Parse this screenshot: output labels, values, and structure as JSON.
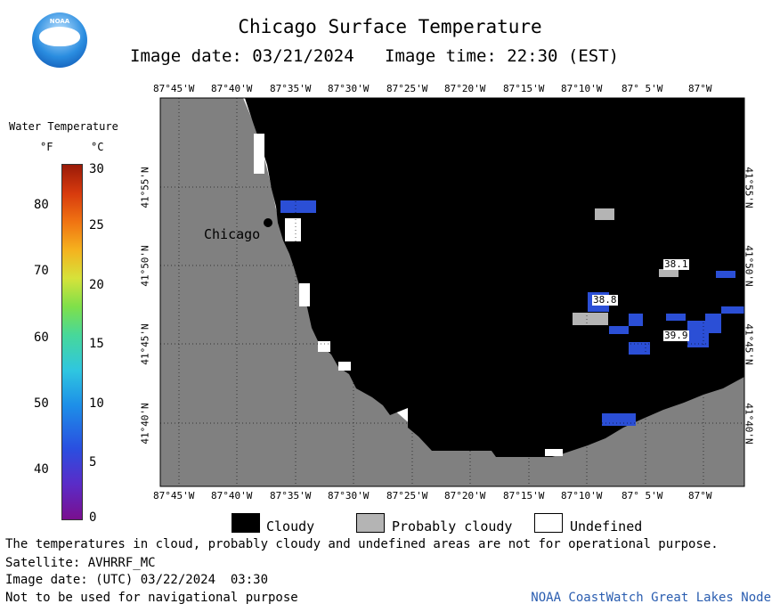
{
  "header": {
    "title": "Chicago Surface Temperature",
    "image_date": "Image date: 03/21/2024",
    "image_time": "Image time: 22:30 (EST)"
  },
  "logo": {
    "text": "NOAA"
  },
  "legend": {
    "title": "Water Temperature",
    "unit_f": "°F",
    "unit_c": "°C",
    "f_ticks": [
      "80",
      "70",
      "60",
      "50",
      "40"
    ],
    "c_ticks": [
      "30",
      "25",
      "20",
      "15",
      "10",
      "5",
      "0"
    ]
  },
  "map": {
    "lon_labels": [
      "87°45'W",
      "87°40'W",
      "87°35'W",
      "87°30'W",
      "87°25'W",
      "87°20'W",
      "87°15'W",
      "87°10'W",
      "87° 5'W",
      "87°W"
    ],
    "lat_labels": [
      "41°55'N",
      "41°50'N",
      "41°45'N",
      "41°40'N"
    ],
    "city": "Chicago",
    "temperature_labels": [
      "38.1",
      "38.8",
      "39.9"
    ]
  },
  "categories": [
    {
      "label": "Cloudy",
      "color": "#000000"
    },
    {
      "label": "Probably cloudy",
      "color": "#b4b4b4"
    },
    {
      "label": "Undefined",
      "color": "#ffffff"
    }
  ],
  "footer": {
    "note": "The temperatures in cloud, probably cloudy and undefined areas are not for operational purpose.",
    "satellite": "Satellite: AVHRRF_MC",
    "utc_date": "Image date: (UTC) 03/22/2024  03:30",
    "nav_warning": "Not to be used for navigational purpose",
    "credit": "NOAA CoastWatch Great Lakes Node"
  },
  "colors": {
    "land": "#808080",
    "water_warm": "#2b4fd6",
    "credit": "#2a5db0"
  }
}
